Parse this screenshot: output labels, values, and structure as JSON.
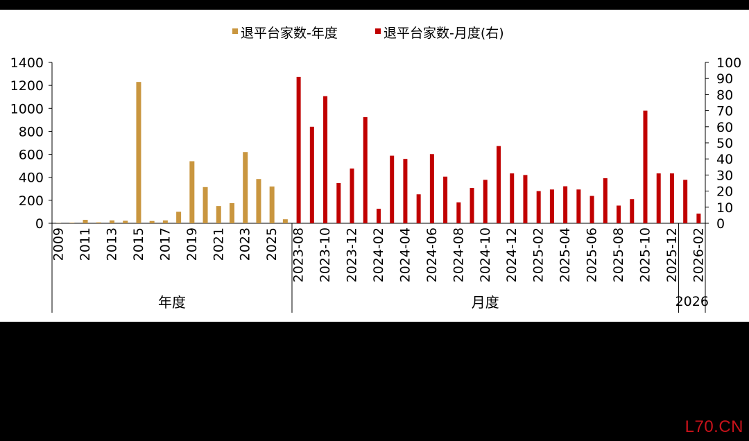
{
  "watermark": "L70.CN",
  "chart_data": {
    "type": "bar",
    "legend": {
      "position": "top-center",
      "entries": [
        {
          "name": "退平台家数-年度",
          "color": "#C9963F"
        },
        {
          "name": "退平台家数-月度(右)",
          "color": "#C00000"
        }
      ]
    },
    "y_left": {
      "min": 0,
      "max": 1400,
      "step": 200,
      "ticks": [
        "0",
        "200",
        "400",
        "600",
        "800",
        "1000",
        "1200",
        "1400"
      ]
    },
    "y_right": {
      "min": 0,
      "max": 100,
      "step": 10,
      "ticks": [
        "0",
        "10",
        "20",
        "30",
        "40",
        "50",
        "60",
        "70",
        "80",
        "90",
        "100"
      ]
    },
    "annual": {
      "name": "退平台家数-年度",
      "axis": "left",
      "color": "#C9963F",
      "x": [
        "2009",
        "2010",
        "2011",
        "2012",
        "2013",
        "2014",
        "2015",
        "2016",
        "2017",
        "2018",
        "2019",
        "2020",
        "2021",
        "2022",
        "2023",
        "2024",
        "2025",
        "2026"
      ],
      "values": [
        2,
        5,
        30,
        8,
        25,
        22,
        1230,
        20,
        25,
        100,
        540,
        315,
        150,
        175,
        620,
        385,
        320,
        35
      ],
      "tick_labels": [
        "2009",
        "2011",
        "2013",
        "2015",
        "2017",
        "2019",
        "2021",
        "2023",
        "2025"
      ]
    },
    "monthly": {
      "name": "退平台家数-月度(右)",
      "axis": "right",
      "color": "#C00000",
      "x": [
        "2023-08",
        "2023-09",
        "2023-10",
        "2023-11",
        "2023-12",
        "2024-01",
        "2024-02",
        "2024-03",
        "2024-04",
        "2024-05",
        "2024-06",
        "2024-07",
        "2024-08",
        "2024-09",
        "2024-10",
        "2024-11",
        "2024-12",
        "2025-01",
        "2025-02",
        "2025-03",
        "2025-04",
        "2025-05",
        "2025-06",
        "2025-07",
        "2025-08",
        "2025-09",
        "2025-10",
        "2025-11",
        "2025-12",
        "2026-01",
        "2026-02"
      ],
      "values": [
        91,
        60,
        79,
        25,
        34,
        66,
        9,
        42,
        40,
        18,
        43,
        29,
        13,
        22,
        27,
        48,
        31,
        30,
        20,
        21,
        23,
        21,
        17,
        28,
        11,
        15,
        70,
        31,
        31,
        27,
        6
      ],
      "tick_labels": [
        "2023-08",
        "2023-10",
        "2023-12",
        "2024-02",
        "2024-04",
        "2024-06",
        "2024-08",
        "2024-10",
        "2024-12",
        "2025-02",
        "2025-04",
        "2025-06",
        "2025-08",
        "2025-10",
        "2025-12",
        "2026-02"
      ]
    },
    "group_labels": [
      "年度",
      "月度",
      "2026"
    ]
  }
}
